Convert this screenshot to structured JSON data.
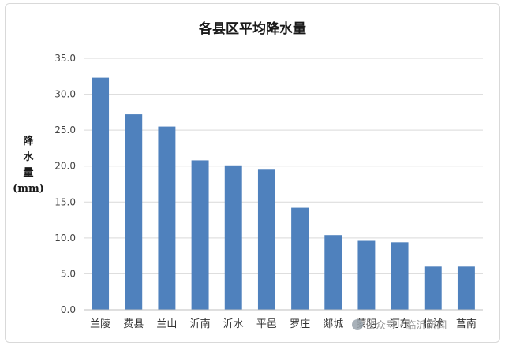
{
  "chart_data": {
    "type": "bar",
    "title": "各县区平均降水量",
    "ylabel_lines": [
      "降",
      "水",
      "量",
      "(mm)"
    ],
    "categories": [
      "兰陵",
      "费县",
      "兰山",
      "沂南",
      "沂水",
      "平邑",
      "罗庄",
      "郯城",
      "蒙阴",
      "河东",
      "临沭",
      "莒南"
    ],
    "values": [
      32.3,
      27.2,
      25.5,
      20.8,
      20.1,
      19.5,
      14.2,
      10.4,
      9.6,
      9.4,
      6.0,
      6.0
    ],
    "ylim": [
      0,
      35
    ],
    "yticks": [
      "0.0",
      "5.0",
      "10.0",
      "15.0",
      "20.0",
      "25.0",
      "30.0",
      "35.0"
    ],
    "grid": true,
    "bar_color": "#4f81bd",
    "grid_color": "#d9d9d9"
  },
  "watermark": {
    "icon": "wechat-icon",
    "text": "公众号 · 临沂新闻"
  }
}
